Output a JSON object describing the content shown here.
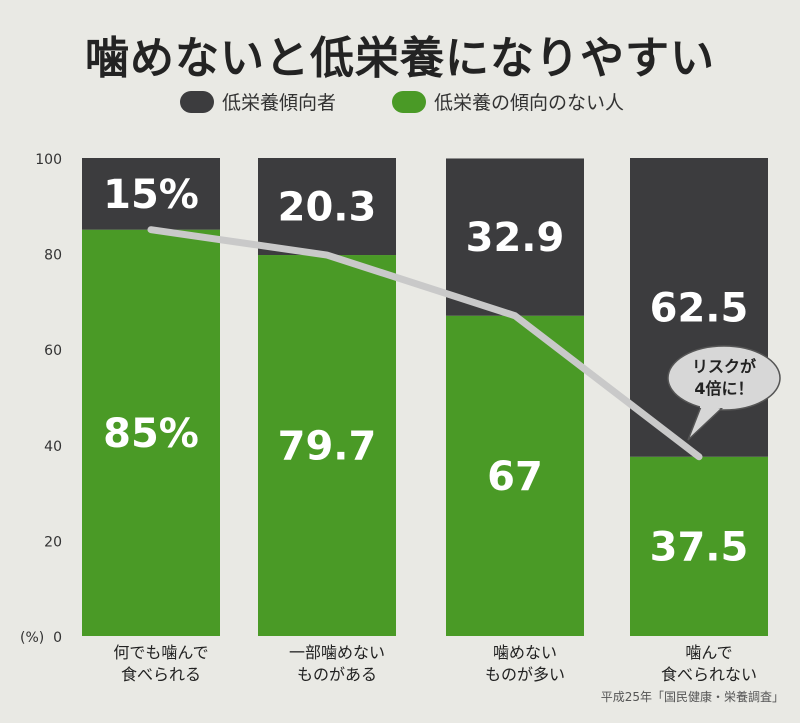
{
  "chart_data": {
    "type": "bar",
    "stacked": true,
    "title": "噛めないと低栄養になりやすい",
    "y_unit_label": "(%)",
    "ylim": [
      0,
      100
    ],
    "yticks": [
      0,
      20,
      40,
      60,
      80,
      100
    ],
    "categories": [
      [
        "何でも噛んで",
        "食べられる"
      ],
      [
        "一部噛めない",
        "ものがある"
      ],
      [
        "噛めない",
        "ものが多い"
      ],
      [
        "噛んで",
        "食べられない"
      ]
    ],
    "series": [
      {
        "name": "低栄養の傾向のない人",
        "color": "#4a9a26",
        "values": [
          85,
          79.7,
          67,
          37.5
        ],
        "labels": [
          "85%",
          "79.7",
          "67",
          "37.5"
        ]
      },
      {
        "name": "低栄養傾向者",
        "color": "#3c3c3e",
        "values": [
          15,
          20.3,
          32.9,
          62.5
        ],
        "labels": [
          "15%",
          "20.3",
          "32.9",
          "62.5"
        ]
      }
    ],
    "trend_line": {
      "color": "#c9c9c9",
      "values": [
        85,
        79.7,
        67,
        37.5
      ]
    },
    "annotation": {
      "text": [
        "リスクが",
        "4倍に！"
      ]
    },
    "source": "平成25年「国民健康・栄養調査」"
  }
}
